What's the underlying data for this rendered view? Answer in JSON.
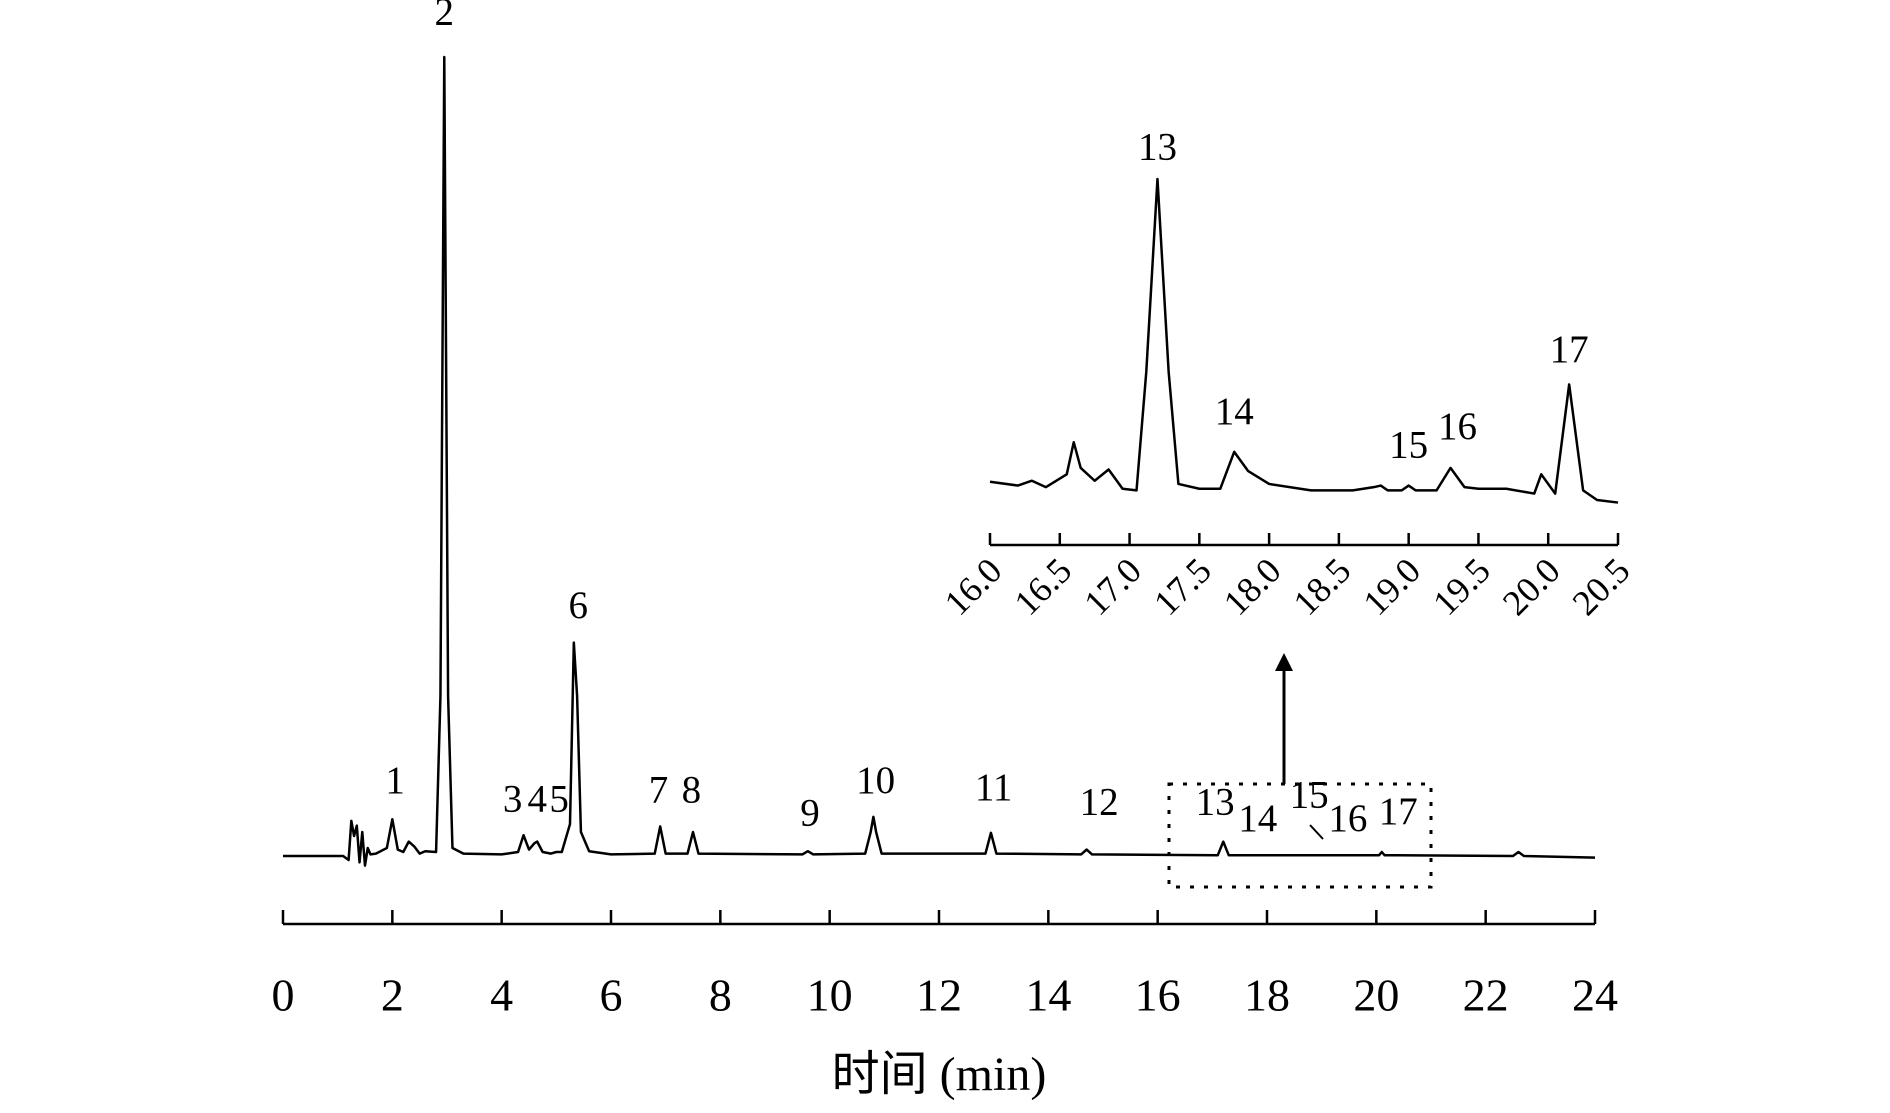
{
  "chart_data": [
    {
      "type": "line",
      "xlabel": "时间 (min)",
      "color": "#000000",
      "xlim": [
        0,
        24
      ],
      "xticks": [
        0,
        2,
        4,
        6,
        8,
        10,
        12,
        14,
        16,
        18,
        20,
        22,
        24
      ],
      "ylim": [
        0,
        100
      ],
      "x": [
        0,
        1.1,
        1.2,
        1.25,
        1.3,
        1.35,
        1.4,
        1.45,
        1.5,
        1.55,
        1.6,
        1.7,
        1.9,
        2.0,
        2.1,
        2.2,
        2.3,
        2.4,
        2.5,
        2.6,
        2.8,
        2.88,
        2.95,
        3.02,
        3.1,
        3.3,
        4.0,
        4.3,
        4.4,
        4.5,
        4.6,
        4.65,
        4.75,
        4.9,
        5.0,
        5.1,
        5.25,
        5.32,
        5.38,
        5.45,
        5.6,
        6.0,
        6.8,
        6.9,
        7.0,
        7.4,
        7.5,
        7.6,
        9.5,
        9.6,
        9.7,
        10.65,
        10.75,
        10.8,
        10.85,
        10.95,
        12.85,
        12.95,
        13.05,
        14.6,
        14.7,
        14.8,
        17.1,
        17.2,
        17.3,
        20.05,
        20.1,
        20.15,
        22.5,
        22.6,
        22.7,
        24
      ],
      "values": [
        0,
        0,
        -0.5,
        4.4,
        2.5,
        3.8,
        -0.8,
        3,
        -1.2,
        1.0,
        0.2,
        0.3,
        1.0,
        4.6,
        0.8,
        0.5,
        1.8,
        1.2,
        0.3,
        0.6,
        0.5,
        20,
        100,
        20,
        1.0,
        0.3,
        0.2,
        0.5,
        2.6,
        0.8,
        1.6,
        1.8,
        0.5,
        0.3,
        0.5,
        0.5,
        4,
        26.7,
        20,
        3,
        0.6,
        0.2,
        0.3,
        3.7,
        0.3,
        0.3,
        3.0,
        0.3,
        0.2,
        0.6,
        0.2,
        0.3,
        3,
        4.9,
        3,
        0.3,
        0.3,
        2.9,
        0.3,
        0.2,
        0.8,
        0.2,
        0.1,
        1.8,
        0.1,
        0.1,
        0.5,
        0.1,
        0,
        0.5,
        0,
        -0.2
      ],
      "annotations": [
        {
          "text": "1",
          "x": 2.05,
          "y": 7.9
        },
        {
          "text": "2",
          "x": 2.95,
          "y": 104.1
        },
        {
          "text": "3",
          "x": 4.2,
          "y": 5.6
        },
        {
          "text": "4",
          "x": 4.65,
          "y": 5.6
        },
        {
          "text": "5",
          "x": 5.05,
          "y": 5.6
        },
        {
          "text": "6",
          "x": 5.4,
          "y": 29.8
        },
        {
          "text": "7",
          "x": 6.87,
          "y": 6.7
        },
        {
          "text": "8",
          "x": 7.47,
          "y": 6.7
        },
        {
          "text": "9",
          "x": 9.64,
          "y": 3.8
        },
        {
          "text": "10",
          "x": 10.84,
          "y": 7.9
        },
        {
          "text": "11",
          "x": 13.0,
          "y": 7.0
        },
        {
          "text": "12",
          "x": 14.93,
          "y": 5.2
        },
        {
          "text": "13",
          "x": 17.05,
          "y": 5.2
        },
        {
          "text": "14",
          "x": 17.83,
          "y": 3.1
        },
        {
          "text": "15",
          "x": 18.77,
          "y": 6.1
        },
        {
          "text": "16",
          "x": 19.48,
          "y": 3.1
        },
        {
          "text": "17",
          "x": 20.4,
          "y": 4.0
        }
      ]
    },
    {
      "type": "line",
      "color": "#000000",
      "xlim": [
        16,
        20.5
      ],
      "xticks": [
        {
          "value": 16,
          "label": "16.0"
        },
        {
          "value": 16.5,
          "label": "16.5"
        },
        {
          "value": 17,
          "label": "17.0"
        },
        {
          "value": 17.5,
          "label": "17.5"
        },
        {
          "value": 18,
          "label": "18.0"
        },
        {
          "value": 18.5,
          "label": "18.5"
        },
        {
          "value": 19,
          "label": "19.0"
        },
        {
          "value": 19.5,
          "label": "19.5"
        },
        {
          "value": 20,
          "label": "20.0"
        },
        {
          "value": 20.5,
          "label": "20.5"
        }
      ],
      "ylim": [
        0,
        100
      ],
      "x": [
        16.0,
        16.2,
        16.3,
        16.4,
        16.55,
        16.6,
        16.65,
        16.75,
        16.85,
        16.95,
        17.05,
        17.12,
        17.2,
        17.28,
        17.35,
        17.5,
        17.65,
        17.75,
        17.85,
        18.0,
        18.3,
        18.6,
        18.75,
        18.8,
        18.85,
        18.95,
        19.0,
        19.05,
        19.2,
        19.3,
        19.4,
        19.5,
        19.7,
        19.9,
        19.95,
        20.05,
        20.15,
        20.25,
        20.35,
        20.5
      ],
      "values": [
        5.7,
        4.5,
        6.0,
        4.0,
        8,
        18,
        10,
        6,
        9.5,
        3.5,
        3.0,
        40,
        100,
        40,
        5,
        3.5,
        3.5,
        15,
        9,
        5,
        3,
        3,
        4,
        4.5,
        3,
        3,
        4.5,
        3,
        3,
        10,
        4,
        3.5,
        3.5,
        2,
        8,
        2,
        36,
        3,
        0,
        -0.8
      ],
      "annotations": [
        {
          "text": "13",
          "x": 17.2,
          "y": 106
        },
        {
          "text": "14",
          "x": 17.75,
          "y": 23.6
        },
        {
          "text": "15",
          "x": 19.0,
          "y": 13.3
        },
        {
          "text": "16",
          "x": 19.35,
          "y": 19
        },
        {
          "text": "17",
          "x": 20.15,
          "y": 43
        }
      ]
    }
  ]
}
